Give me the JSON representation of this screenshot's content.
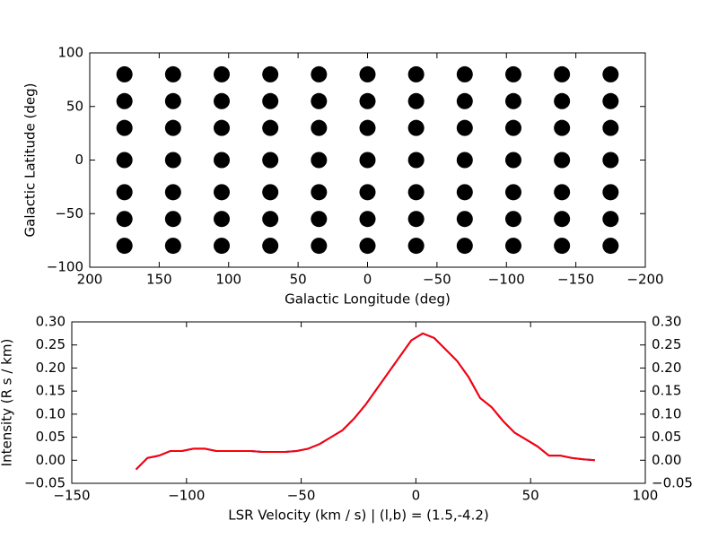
{
  "chart_data": [
    {
      "type": "scatter",
      "xlabel": "Galactic Longitude (deg)",
      "ylabel": "Galactic Latitude (deg)",
      "color": "#000000",
      "x": [
        175,
        175,
        175,
        175,
        175,
        175,
        175,
        140,
        140,
        140,
        140,
        140,
        140,
        140,
        105,
        105,
        105,
        105,
        105,
        105,
        105,
        70,
        70,
        70,
        70,
        70,
        70,
        70,
        35,
        35,
        35,
        35,
        35,
        35,
        35,
        0,
        0,
        0,
        0,
        0,
        0,
        0,
        -35,
        -35,
        -35,
        -35,
        -35,
        -35,
        -35,
        -70,
        -70,
        -70,
        -70,
        -70,
        -70,
        -70,
        -105,
        -105,
        -105,
        -105,
        -105,
        -105,
        -105,
        -140,
        -140,
        -140,
        -140,
        -140,
        -140,
        -140,
        -175,
        -175,
        -175,
        -175,
        -175,
        -175,
        -175
      ],
      "y": [
        -80,
        -55,
        -30,
        0,
        30,
        55,
        80,
        -80,
        -55,
        -30,
        0,
        30,
        55,
        80,
        -80,
        -55,
        -30,
        0,
        30,
        55,
        80,
        -80,
        -55,
        -30,
        0,
        30,
        55,
        80,
        -80,
        -55,
        -30,
        0,
        30,
        55,
        80,
        -80,
        -55,
        -30,
        0,
        30,
        55,
        80,
        -80,
        -55,
        -30,
        0,
        30,
        55,
        80,
        -80,
        -55,
        -30,
        0,
        30,
        55,
        80,
        -80,
        -55,
        -30,
        0,
        30,
        55,
        80,
        -80,
        -55,
        -30,
        0,
        30,
        55,
        80,
        -80,
        -55,
        -30,
        0,
        30,
        55,
        80
      ],
      "xlim": [
        200,
        -200
      ],
      "xticks": [
        200,
        150,
        100,
        50,
        0,
        {
          "value": -50,
          "label": "−50"
        },
        {
          "value": -100,
          "label": "−100"
        },
        {
          "value": -150,
          "label": "−150"
        },
        {
          "value": -200,
          "label": "−200"
        }
      ],
      "ylim": [
        -100,
        100
      ],
      "yticks": [
        {
          "value": -100,
          "label": "−100"
        },
        {
          "value": -50,
          "label": "−50"
        },
        0,
        50,
        100
      ]
    },
    {
      "type": "line",
      "xlabel": "LSR Velocity (km / s) | (l,b) = (1.5,-4.2)",
      "ylabel": "Intensity (R s / km)",
      "x": [
        -122,
        -117,
        -112,
        -107,
        -102,
        -97,
        -92,
        -87,
        -82,
        -77,
        -72,
        -67,
        -62,
        -57,
        -52,
        -47,
        -42,
        -37,
        -32,
        -27,
        -22,
        -17,
        -12,
        -7,
        -2,
        3,
        8,
        13,
        18,
        23,
        28,
        33,
        38,
        43,
        48,
        53,
        58,
        63,
        68,
        73,
        78
      ],
      "series": [
        {
          "color": "#0000ff",
          "values": [
            -0.02,
            0.005,
            0.01,
            0.02,
            0.02,
            0.025,
            0.025,
            0.02,
            0.02,
            0.02,
            0.02,
            0.018,
            0.018,
            0.018,
            0.02,
            0.025,
            0.035,
            0.05,
            0.065,
            0.09,
            0.12,
            0.155,
            0.19,
            0.225,
            0.26,
            0.275,
            0.265,
            0.24,
            0.215,
            0.18,
            0.135,
            0.115,
            0.085,
            0.06,
            0.045,
            0.03,
            0.01,
            0.01,
            0.005,
            0.002,
            0
          ]
        },
        {
          "color": "#ff0000",
          "values": [
            -0.02,
            0.005,
            0.01,
            0.02,
            0.02,
            0.025,
            0.025,
            0.02,
            0.02,
            0.02,
            0.02,
            0.018,
            0.018,
            0.018,
            0.02,
            0.025,
            0.035,
            0.05,
            0.065,
            0.09,
            0.12,
            0.155,
            0.19,
            0.225,
            0.26,
            0.275,
            0.265,
            0.24,
            0.215,
            0.18,
            0.135,
            0.115,
            0.085,
            0.06,
            0.045,
            0.03,
            0.01,
            0.01,
            0.005,
            0.002,
            0
          ]
        }
      ],
      "xlim": [
        -150,
        100
      ],
      "xticks": [
        {
          "value": -150,
          "label": "−150"
        },
        {
          "value": -100,
          "label": "−100"
        },
        {
          "value": -50,
          "label": "−50"
        },
        0,
        50,
        100
      ],
      "ylim": [
        -0.05,
        0.3
      ],
      "yticks": [
        {
          "value": -0.05,
          "label": "−0.05"
        },
        {
          "value": 0,
          "label": "0.00"
        },
        0.05,
        {
          "value": 0.1,
          "label": "0.10"
        },
        0.15,
        {
          "value": 0.2,
          "label": "0.20"
        },
        0.25,
        {
          "value": 0.3,
          "label": "0.30"
        }
      ],
      "y2lim": [
        -0.05,
        0.3
      ],
      "y2ticks": [
        {
          "value": -0.05,
          "label": "−0.05"
        },
        {
          "value": 0,
          "label": "0.00"
        },
        0.05,
        {
          "value": 0.1,
          "label": "0.10"
        },
        0.15,
        {
          "value": 0.2,
          "label": "0.20"
        },
        0.25,
        {
          "value": 0.3,
          "label": "0.30"
        }
      ]
    }
  ]
}
